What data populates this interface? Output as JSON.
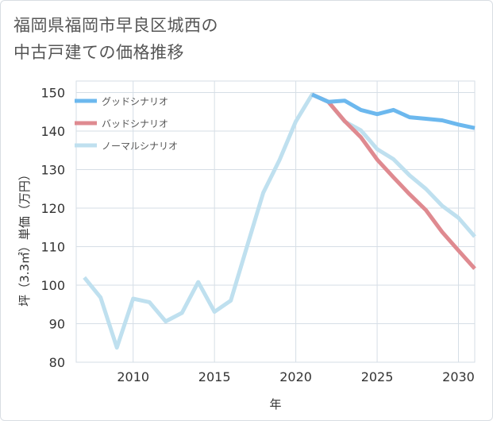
{
  "title_lines": [
    "福岡県福岡市早良区城西の",
    "中古戸建ての価格推移"
  ],
  "chart_data": {
    "type": "line",
    "title": "福岡県福岡市早良区城西の中古戸建ての価格推移",
    "xlabel": "年",
    "ylabel": "坪（3.3㎡）単価（万円）",
    "xlim": [
      2006.5,
      2031
    ],
    "ylim": [
      80,
      153
    ],
    "xticks": [
      2010,
      2015,
      2020,
      2025,
      2030
    ],
    "yticks": [
      80,
      90,
      100,
      110,
      120,
      130,
      140,
      150
    ],
    "grid": true,
    "legend_position": "top-left",
    "series": [
      {
        "name": "グッドシナリオ",
        "color": "#6cb8ee",
        "x": [
          2021,
          2022,
          2023,
          2024,
          2025,
          2026,
          2027,
          2028,
          2029,
          2030,
          2031
        ],
        "values": [
          149.5,
          147.6,
          147.9,
          145.5,
          144.4,
          145.5,
          143.6,
          143.2,
          142.8,
          141.7,
          140.8
        ]
      },
      {
        "name": "バッドシナリオ",
        "color": "#df8a90",
        "x": [
          2021,
          2022,
          2023,
          2024,
          2025,
          2026,
          2027,
          2028,
          2029,
          2030,
          2031
        ],
        "values": [
          149.5,
          147.6,
          142.6,
          138.4,
          132.6,
          128.0,
          123.6,
          119.5,
          113.8,
          109.0,
          104.3
        ]
      },
      {
        "name": "ノーマルシナリオ",
        "color": "#bfe0ef",
        "x": [
          2007,
          2008,
          2009,
          2010,
          2011,
          2012,
          2013,
          2014,
          2015,
          2016,
          2017,
          2018,
          2019,
          2020,
          2021,
          2022,
          2023,
          2024,
          2025,
          2026,
          2027,
          2028,
          2029,
          2030,
          2031
        ],
        "values": [
          102.0,
          96.8,
          83.8,
          96.5,
          95.6,
          90.6,
          92.8,
          100.8,
          93.1,
          96.0,
          110.0,
          124.0,
          132.5,
          142.5,
          149.5,
          147.6,
          142.5,
          140.2,
          135.3,
          132.7,
          128.5,
          125.0,
          120.6,
          117.5,
          112.6
        ]
      }
    ]
  }
}
